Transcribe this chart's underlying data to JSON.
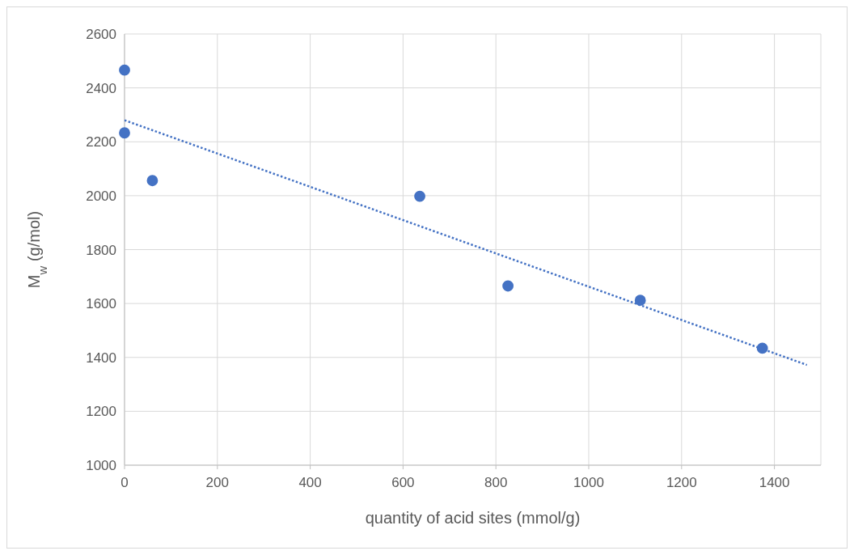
{
  "chart_data": {
    "type": "scatter",
    "xlabel": "quantity of acid sites (mmol/g)",
    "ylabel": "M$_{w}$ (g/mol)",
    "xlim": [
      0,
      1500
    ],
    "xticks": [
      0,
      200,
      400,
      600,
      800,
      1000,
      1200,
      1400
    ],
    "ylim": [
      1000,
      2600
    ],
    "yticks": [
      1000,
      1200,
      1400,
      1600,
      1800,
      2000,
      2200,
      2400,
      2600
    ],
    "grid": true,
    "marker": "circle",
    "series": [
      {
        "color": "#4472c4",
        "x": [
          0,
          0,
          60,
          636,
          826,
          1111,
          1374
        ],
        "values": [
          2466,
          2233,
          2056,
          1998,
          1665,
          1612,
          1434
        ]
      },
      {
        "type": "line",
        "color": "#4472c4",
        "line_style": "dotted",
        "marker": "none",
        "x": [
          0,
          1470
        ],
        "values": [
          2280,
          1372
        ]
      }
    ]
  }
}
